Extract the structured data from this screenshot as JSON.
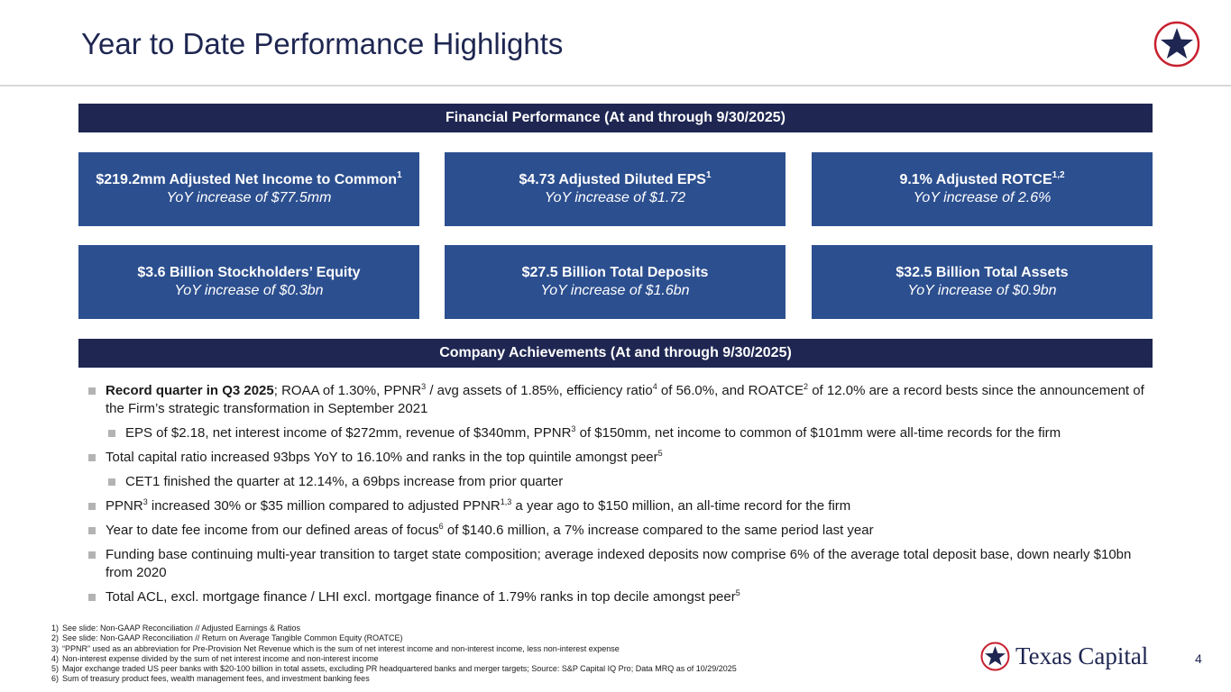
{
  "header": {
    "title": "Year to Date Performance Highlights",
    "logo_icon": "star-circle-icon"
  },
  "colors": {
    "navy": "#1e2651",
    "card_blue": "#2c4f8f",
    "logo_red": "#c8202f",
    "bullet_gray": "#b3b3b3"
  },
  "financial": {
    "heading": "Financial Performance (At and through 9/30/2025)",
    "cards": [
      {
        "main": "$219.2mm Adjusted Net Income to Common",
        "sup": "1",
        "sub": "YoY increase of $77.5mm"
      },
      {
        "main": "$4.73 Adjusted Diluted EPS",
        "sup": "1",
        "sub": "YoY increase of $1.72"
      },
      {
        "main": "9.1% Adjusted ROTCE",
        "sup": "1,2",
        "sub": "YoY increase of 2.6%"
      },
      {
        "main": "$3.6 Billion Stockholders’ Equity",
        "sup": "",
        "sub": "YoY increase of $0.3bn"
      },
      {
        "main": "$27.5 Billion Total Deposits",
        "sup": "",
        "sub": "YoY increase of $1.6bn"
      },
      {
        "main": "$32.5 Billion Total Assets",
        "sup": "",
        "sub": "YoY increase of $0.9bn"
      }
    ]
  },
  "achievements": {
    "heading": "Company Achievements (At and through 9/30/2025)",
    "b1": {
      "bold": "Record quarter in Q3 2025",
      "t1": "; ROAA of 1.30%, PPNR",
      "s1": "3",
      "t2": " / avg assets of 1.85%, efficiency ratio",
      "s2": "4",
      "t3": " of 56.0%, and ROATCE",
      "s3": "2",
      "t4": " of 12.0% are a record bests since the announcement of the Firm’s strategic transformation in September 2021"
    },
    "b1a": {
      "t1": "EPS of $2.18, net interest income of $272mm, revenue of $340mm, PPNR",
      "s1": "3",
      "t2": " of $150mm, net income to common of $101mm were all-time records for the firm"
    },
    "b2": {
      "t1": "Total capital ratio increased 93bps YoY to 16.10% and ranks in the top quintile amongst peer",
      "s1": "5"
    },
    "b2a": {
      "t1": "CET1 finished the quarter at 12.14%, a 69bps increase from prior quarter"
    },
    "b3": {
      "t1": "PPNR",
      "s1": "3",
      "t2": " increased 30% or $35 million compared to adjusted PPNR",
      "s2": "1,3",
      "t3": " a year ago to $150 million, an all-time record for the firm"
    },
    "b4": {
      "t1": "Year to date fee income from our defined areas of focus",
      "s1": "6",
      "t2": " of $140.6 million, a 7% increase compared to the same period last year"
    },
    "b5": {
      "t1": "Funding base continuing multi-year transition to target state composition; average indexed deposits now comprise 6% of the average total deposit base, down nearly $10bn from 2020"
    },
    "b6": {
      "t1": "Total ACL, excl. mortgage finance / LHI excl. mortgage finance of 1.79% ranks in top decile amongst peer",
      "s1": "5"
    }
  },
  "footnotes": [
    {
      "num": "1)",
      "text": "See slide: Non-GAAP Reconciliation // Adjusted Earnings & Ratios"
    },
    {
      "num": "2)",
      "text": "See slide: Non-GAAP Reconciliation // Return on Average Tangible Common Equity (ROATCE)"
    },
    {
      "num": "3)",
      "text": "“PPNR” used as an abbreviation for Pre-Provision Net Revenue which is the sum of net interest income and non-interest income, less non-interest expense"
    },
    {
      "num": "4)",
      "text": "Non-interest expense divided by the sum of net interest income and non-interest income"
    },
    {
      "num": "5)",
      "text": "Major exchange traded US peer banks with $20-100 billion in total assets, excluding PR headquartered banks and merger targets; Source: S&P Capital IQ Pro; Data MRQ as of 10/29/2025"
    },
    {
      "num": "6)",
      "text": "Sum of treasury product fees, wealth management fees, and investment banking fees"
    }
  ],
  "footer": {
    "brand_name": "Texas Capital",
    "brand_icon": "star-circle-icon",
    "page_number": "4"
  }
}
